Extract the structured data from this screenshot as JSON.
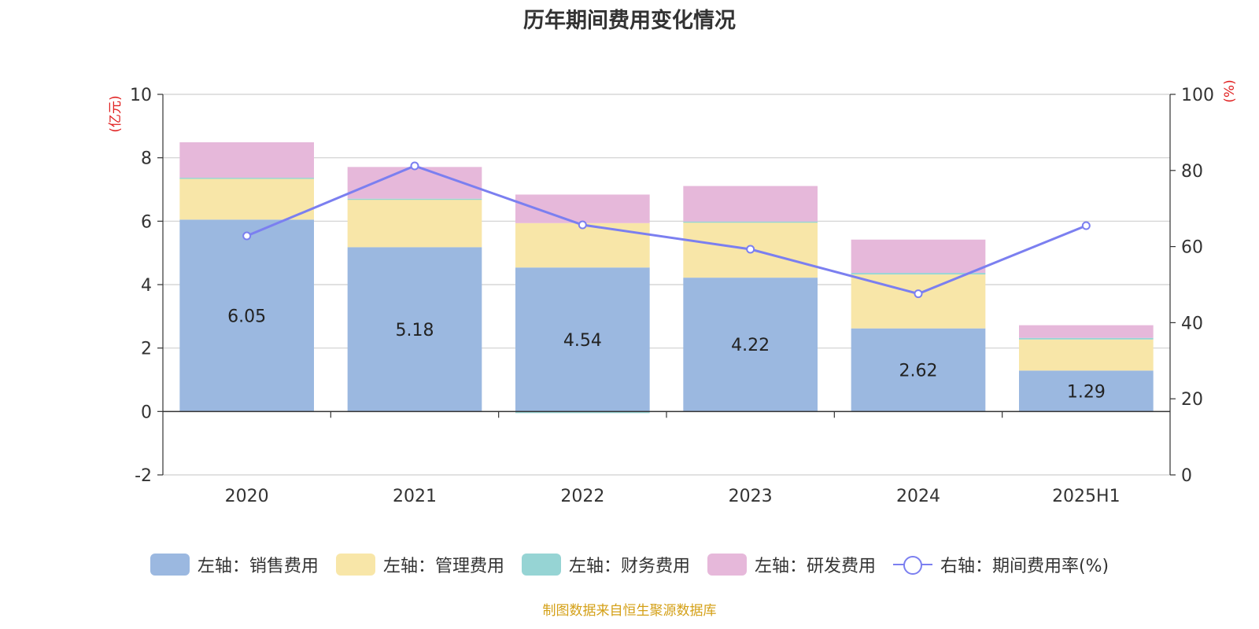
{
  "chart_data": {
    "type": "bar",
    "title": "历年期间费用变化情况",
    "categories": [
      "2020",
      "2021",
      "2022",
      "2023",
      "2024",
      "2025H1"
    ],
    "left_axis": {
      "unit_label": "(亿元)",
      "ylim": [
        -2,
        10
      ],
      "ticks": [
        "-2",
        "0",
        "2",
        "4",
        "6",
        "8",
        "10"
      ]
    },
    "right_axis": {
      "unit_label": "(%)",
      "ylim": [
        0,
        100
      ],
      "ticks": [
        "0",
        "20",
        "40",
        "60",
        "80",
        "100"
      ]
    },
    "grid": true,
    "legend_position": "bottom",
    "series": [
      {
        "name": "左轴：销售费用",
        "type": "bar",
        "stack": "left",
        "color": "#9bb8e0",
        "values": [
          6.05,
          5.18,
          4.54,
          4.22,
          2.62,
          1.29
        ],
        "labels": [
          "6.05",
          "5.18",
          "4.54",
          "4.22",
          "2.62",
          "1.29"
        ]
      },
      {
        "name": "左轴：管理费用",
        "type": "bar",
        "stack": "left",
        "color": "#f8e6a8",
        "values": [
          1.3,
          1.5,
          1.4,
          1.75,
          1.7,
          0.98
        ]
      },
      {
        "name": "左轴：财务费用",
        "type": "bar",
        "stack": "left",
        "color": "#96d4d4",
        "values": [
          0.02,
          0.03,
          -0.05,
          0.02,
          0.05,
          0.05
        ]
      },
      {
        "name": "左轴：研发费用",
        "type": "bar",
        "stack": "left",
        "color": "#e6b8da",
        "values": [
          1.12,
          1.0,
          0.9,
          1.12,
          1.05,
          0.4
        ]
      },
      {
        "name": "右轴：期间费用率(%)",
        "type": "line",
        "axis": "right",
        "color": "#7b7ff0",
        "values": [
          62.8,
          81.2,
          65.7,
          59.3,
          47.6,
          65.5
        ]
      }
    ]
  },
  "source": "制图数据来自恒生聚源数据库"
}
